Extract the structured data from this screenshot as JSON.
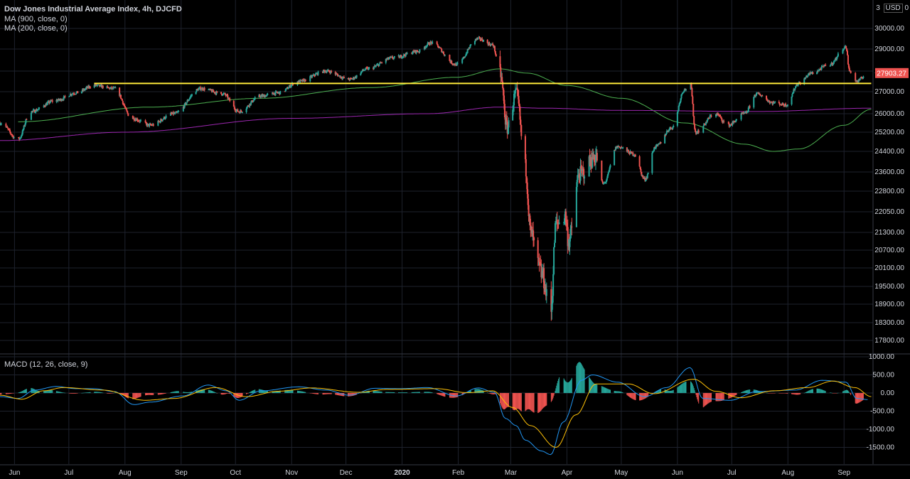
{
  "header": {
    "title": "Dow Jones Industrial Average Index, 4h, DJCFD",
    "ma900": "MA (900, close, 0)",
    "ma200": "MA (200, close, 0)",
    "macd": "MACD (12, 26, close, 9)",
    "currency_prefix": "3",
    "currency": "USD",
    "currency_suffix": "0"
  },
  "colors": {
    "background": "#000000",
    "grid": "#1e222d",
    "up": "#26a69a",
    "down": "#ef5350",
    "ma900": "#4caf50",
    "ma200": "#9c27b0",
    "support": "#ffeb3b",
    "macd_line": "#2196f3",
    "signal_line": "#ffc107",
    "last_price_bg": "#ef5350"
  },
  "chart_data": [
    {
      "type": "candlestick",
      "title": "Dow Jones Industrial Average Index, 4h, DJCFD",
      "y_ticks": [
        "30000.00",
        "29000.00",
        "28000.00",
        "27000.00",
        "26000.00",
        "25200.00",
        "24400.00",
        "23600.00",
        "22800.00",
        "22050.00",
        "21300.00",
        "20700.00",
        "20100.00",
        "19500.00",
        "18900.00",
        "18300.00",
        "17800.00"
      ],
      "y_tick_values": [
        30000,
        29000,
        28000,
        27000,
        26000,
        25200,
        24400,
        23600,
        22800,
        22050,
        21300,
        20700,
        20100,
        19500,
        18900,
        18300,
        17800
      ],
      "x_ticks": [
        "Jun",
        "Jul",
        "Aug",
        "Sep",
        "Oct",
        "Nov",
        "Dec",
        "2020",
        "Feb",
        "Mar",
        "Apr",
        "May",
        "Jun",
        "Jul",
        "Aug",
        "Sep"
      ],
      "x_tick_bold": "2020",
      "x_range": [
        "2019-05-24",
        "2020-09-17"
      ],
      "month_starts": [
        "2019-06-01",
        "2019-07-01",
        "2019-08-01",
        "2019-09-01",
        "2019-10-01",
        "2019-11-01",
        "2019-12-01",
        "2020-01-01",
        "2020-02-01",
        "2020-03-01",
        "2020-04-01",
        "2020-05-01",
        "2020-06-01",
        "2020-07-01",
        "2020-08-01",
        "2020-09-01"
      ],
      "last_price": "27903.27",
      "last_price_value": 27903.27,
      "support_level": 27400,
      "support_range": [
        "2019-07-15",
        "2020-09-16"
      ],
      "close_anchors": [
        [
          "2019-05-24",
          25600
        ],
        [
          "2019-06-03",
          24900
        ],
        [
          "2019-06-10",
          26100
        ],
        [
          "2019-06-24",
          26600
        ],
        [
          "2019-07-05",
          26950
        ],
        [
          "2019-07-15",
          27300
        ],
        [
          "2019-07-26",
          27150
        ],
        [
          "2019-08-05",
          25800
        ],
        [
          "2019-08-15",
          25500
        ],
        [
          "2019-08-28",
          26000
        ],
        [
          "2019-09-12",
          27150
        ],
        [
          "2019-09-24",
          26900
        ],
        [
          "2019-10-03",
          26100
        ],
        [
          "2019-10-15",
          26800
        ],
        [
          "2019-10-25",
          26950
        ],
        [
          "2019-11-05",
          27500
        ],
        [
          "2019-11-20",
          28000
        ],
        [
          "2019-12-03",
          27600
        ],
        [
          "2019-12-13",
          28100
        ],
        [
          "2019-12-27",
          28600
        ],
        [
          "2020-01-10",
          28900
        ],
        [
          "2020-01-17",
          29300
        ],
        [
          "2020-01-31",
          28300
        ],
        [
          "2020-02-12",
          29500
        ],
        [
          "2020-02-20",
          29200
        ],
        [
          "2020-02-24",
          27900
        ],
        [
          "2020-02-28",
          25400
        ],
        [
          "2020-03-04",
          26900
        ],
        [
          "2020-03-09",
          23800
        ],
        [
          "2020-03-12",
          21300
        ],
        [
          "2020-03-16",
          20200
        ],
        [
          "2020-03-18",
          19900
        ],
        [
          "2020-03-23",
          18600
        ],
        [
          "2020-03-26",
          21600
        ],
        [
          "2020-03-31",
          21900
        ],
        [
          "2020-04-02",
          21000
        ],
        [
          "2020-04-08",
          23500
        ],
        [
          "2020-04-17",
          24200
        ],
        [
          "2020-04-21",
          23100
        ],
        [
          "2020-04-29",
          24600
        ],
        [
          "2020-05-08",
          24300
        ],
        [
          "2020-05-14",
          23300
        ],
        [
          "2020-05-20",
          24600
        ],
        [
          "2020-05-29",
          25400
        ],
        [
          "2020-06-05",
          27100
        ],
        [
          "2020-06-08",
          27400
        ],
        [
          "2020-06-11",
          25200
        ],
        [
          "2020-06-22",
          26000
        ],
        [
          "2020-06-29",
          25500
        ],
        [
          "2020-07-08",
          26000
        ],
        [
          "2020-07-15",
          26900
        ],
        [
          "2020-07-24",
          26500
        ],
        [
          "2020-07-31",
          26400
        ],
        [
          "2020-08-07",
          27400
        ],
        [
          "2020-08-14",
          27900
        ],
        [
          "2020-08-24",
          28300
        ],
        [
          "2020-09-02",
          29100
        ],
        [
          "2020-09-04",
          28000
        ],
        [
          "2020-09-08",
          27500
        ],
        [
          "2020-09-14",
          27900
        ]
      ],
      "ma900_anchors": [
        [
          "2019-06-03",
          25650
        ],
        [
          "2019-08-15",
          26300
        ],
        [
          "2019-10-15",
          26700
        ],
        [
          "2019-12-15",
          27200
        ],
        [
          "2020-01-31",
          27700
        ],
        [
          "2020-02-24",
          28100
        ],
        [
          "2020-03-10",
          27900
        ],
        [
          "2020-04-01",
          27300
        ],
        [
          "2020-05-01",
          26700
        ],
        [
          "2020-06-05",
          25600
        ],
        [
          "2020-07-08",
          24700
        ],
        [
          "2020-07-24",
          24400
        ],
        [
          "2020-08-07",
          24500
        ],
        [
          "2020-09-01",
          25500
        ],
        [
          "2020-09-16",
          26200
        ]
      ],
      "ma200_anchors": [
        [
          "2019-05-24",
          24850
        ],
        [
          "2019-08-01",
          25200
        ],
        [
          "2019-11-01",
          25800
        ],
        [
          "2020-01-15",
          26000
        ],
        [
          "2020-02-24",
          26300
        ],
        [
          "2020-03-20",
          26250
        ],
        [
          "2020-05-01",
          26150
        ],
        [
          "2020-07-15",
          26100
        ],
        [
          "2020-09-16",
          26250
        ]
      ]
    },
    {
      "type": "macd",
      "title": "MACD (12, 26, close, 9)",
      "y_ticks": [
        "1000.00",
        "500.00",
        "0.00",
        "-500.00",
        "-1000.00",
        "-1500.00"
      ],
      "y_tick_values": [
        1000,
        500,
        0,
        -500,
        -1000,
        -1500
      ],
      "macd_anchors": [
        [
          "2019-05-24",
          -100
        ],
        [
          "2019-06-03",
          -150
        ],
        [
          "2019-06-12",
          80
        ],
        [
          "2019-06-24",
          180
        ],
        [
          "2019-07-05",
          120
        ],
        [
          "2019-07-15",
          120
        ],
        [
          "2019-07-26",
          40
        ],
        [
          "2019-08-06",
          -320
        ],
        [
          "2019-08-15",
          -250
        ],
        [
          "2019-09-02",
          -80
        ],
        [
          "2019-09-16",
          220
        ],
        [
          "2019-09-26",
          60
        ],
        [
          "2019-10-03",
          -200
        ],
        [
          "2019-10-15",
          60
        ],
        [
          "2019-11-05",
          170
        ],
        [
          "2019-11-20",
          80
        ],
        [
          "2019-12-03",
          -60
        ],
        [
          "2019-12-17",
          130
        ],
        [
          "2019-12-31",
          120
        ],
        [
          "2020-01-15",
          150
        ],
        [
          "2020-01-31",
          -80
        ],
        [
          "2020-02-12",
          140
        ],
        [
          "2020-02-21",
          20
        ],
        [
          "2020-02-27",
          -700
        ],
        [
          "2020-03-04",
          -900
        ],
        [
          "2020-03-09",
          -1300
        ],
        [
          "2020-03-18",
          -1600
        ],
        [
          "2020-03-23",
          -1700
        ],
        [
          "2020-03-30",
          -800
        ],
        [
          "2020-04-09",
          350
        ],
        [
          "2020-04-15",
          500
        ],
        [
          "2020-04-29",
          300
        ],
        [
          "2020-05-14",
          -100
        ],
        [
          "2020-05-26",
          150
        ],
        [
          "2020-06-08",
          700
        ],
        [
          "2020-06-15",
          -150
        ],
        [
          "2020-06-30",
          -200
        ],
        [
          "2020-07-15",
          40
        ],
        [
          "2020-08-05",
          80
        ],
        [
          "2020-08-20",
          350
        ],
        [
          "2020-09-02",
          300
        ],
        [
          "2020-09-08",
          -150
        ],
        [
          "2020-09-14",
          -180
        ]
      ],
      "signal_anchors": [
        [
          "2019-05-24",
          -60
        ],
        [
          "2019-06-05",
          -170
        ],
        [
          "2019-06-17",
          60
        ],
        [
          "2019-06-28",
          150
        ],
        [
          "2019-07-20",
          80
        ],
        [
          "2019-08-12",
          -200
        ],
        [
          "2019-08-28",
          -150
        ],
        [
          "2019-09-20",
          150
        ],
        [
          "2019-10-07",
          -100
        ],
        [
          "2019-10-25",
          50
        ],
        [
          "2019-11-12",
          140
        ],
        [
          "2019-12-08",
          20
        ],
        [
          "2019-12-24",
          100
        ],
        [
          "2020-01-20",
          120
        ],
        [
          "2020-02-06",
          10
        ],
        [
          "2020-02-20",
          60
        ],
        [
          "2020-03-02",
          -400
        ],
        [
          "2020-03-12",
          -900
        ],
        [
          "2020-03-26",
          -1500
        ],
        [
          "2020-04-06",
          -600
        ],
        [
          "2020-04-17",
          250
        ],
        [
          "2020-05-05",
          250
        ],
        [
          "2020-05-19",
          -20
        ],
        [
          "2020-06-10",
          380
        ],
        [
          "2020-06-22",
          50
        ],
        [
          "2020-07-06",
          -130
        ],
        [
          "2020-07-24",
          60
        ],
        [
          "2020-08-12",
          150
        ],
        [
          "2020-08-26",
          330
        ],
        [
          "2020-09-07",
          150
        ],
        [
          "2020-09-16",
          -100
        ]
      ]
    }
  ]
}
